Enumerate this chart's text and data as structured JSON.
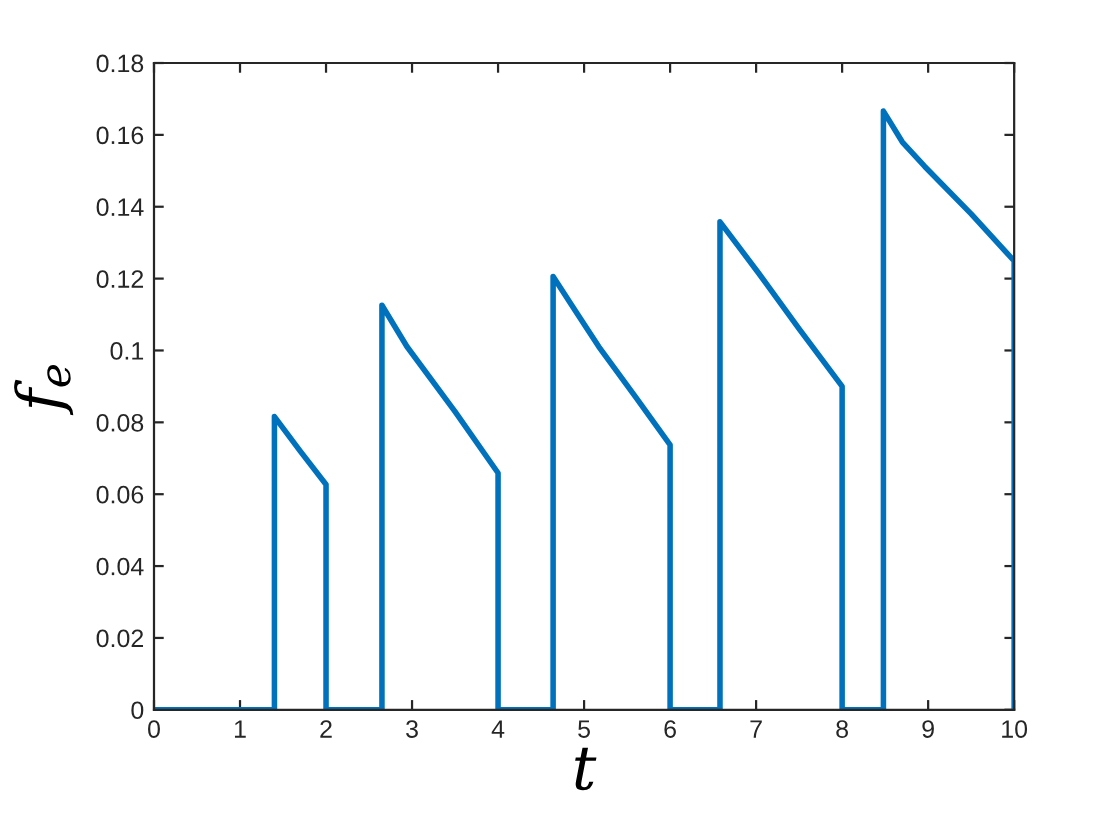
{
  "chart_data": {
    "type": "line",
    "xlabel": "t",
    "ylabel": "f$_{e}$",
    "x": [
      0,
      1.4,
      1.4,
      1.7,
      2.0,
      2.0,
      2.65,
      2.65,
      2.94,
      3.5,
      4.0,
      4.0,
      4.64,
      4.64,
      4.9,
      5.17,
      5.6,
      6.0,
      6.0,
      6.58,
      6.58,
      7.03,
      7.5,
      8.0,
      8.0,
      8.48,
      8.48,
      8.7,
      8.96,
      9.5,
      10,
      10
    ],
    "series": [
      {
        "color": "#0072bd",
        "values": [
          0,
          0,
          0.0816,
          0.072,
          0.0627,
          0,
          0,
          0.1126,
          0.1011,
          0.083,
          0.0659,
          0,
          0,
          0.1206,
          0.111,
          0.1011,
          0.087,
          0.0737,
          0,
          0,
          0.1358,
          0.1215,
          0.106,
          0.09,
          0,
          0,
          0.1666,
          0.158,
          0.1512,
          0.138,
          0.1249,
          0
        ]
      }
    ],
    "xlim": [
      0,
      10
    ],
    "xticks": [
      0,
      1,
      2,
      3,
      4,
      5,
      6,
      7,
      8,
      9,
      10
    ],
    "ylim": [
      0,
      0.18
    ],
    "yticks": [
      0,
      0.02,
      0.04,
      0.06,
      0.08,
      0.1,
      0.12,
      0.14,
      0.16,
      0.18
    ],
    "grid": false,
    "legend": false,
    "marker": "none",
    "line_style": "solid"
  }
}
